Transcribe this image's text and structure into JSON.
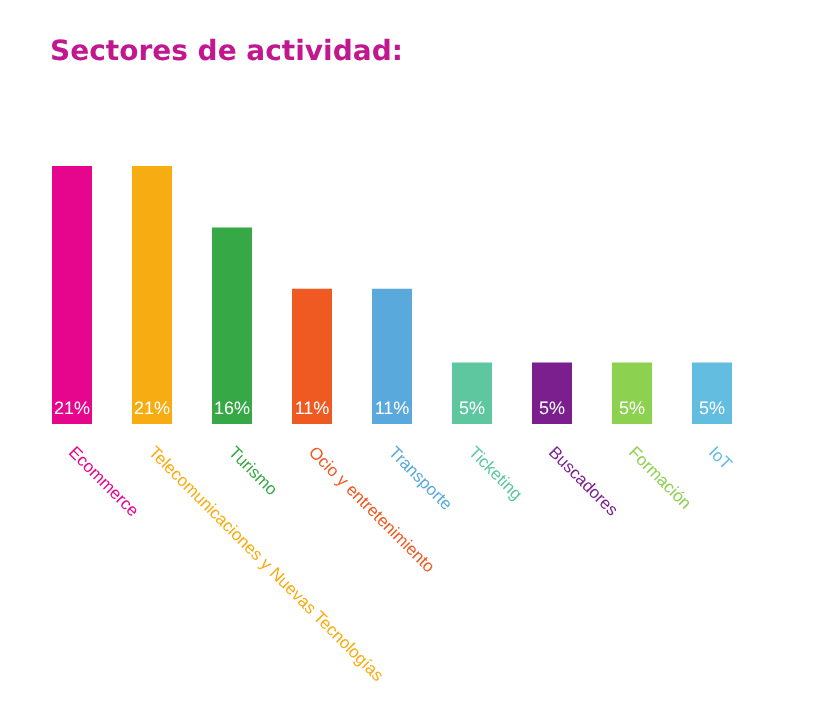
{
  "chart_data": {
    "type": "bar",
    "title": "Sectores de actividad:",
    "categories": [
      "Ecommerce",
      "Telecomunicaciones y Nuevas Tecnologías",
      "Turismo",
      "Ocio y entretenimiento",
      "Transporte",
      "Ticketing",
      "Buscadores",
      "Formación",
      "IoT"
    ],
    "values": [
      21,
      21,
      16,
      11,
      11,
      5,
      5,
      5,
      5
    ],
    "value_labels": [
      "21%",
      "21%",
      "16%",
      "11%",
      "11%",
      "5%",
      "5%",
      "5%",
      "5%"
    ],
    "colors": [
      "#e6068d",
      "#f7ac12",
      "#36a845",
      "#ef5a22",
      "#5aa9dc",
      "#5ec7a0",
      "#7b1f8e",
      "#8cd14f",
      "#62bde0"
    ]
  }
}
